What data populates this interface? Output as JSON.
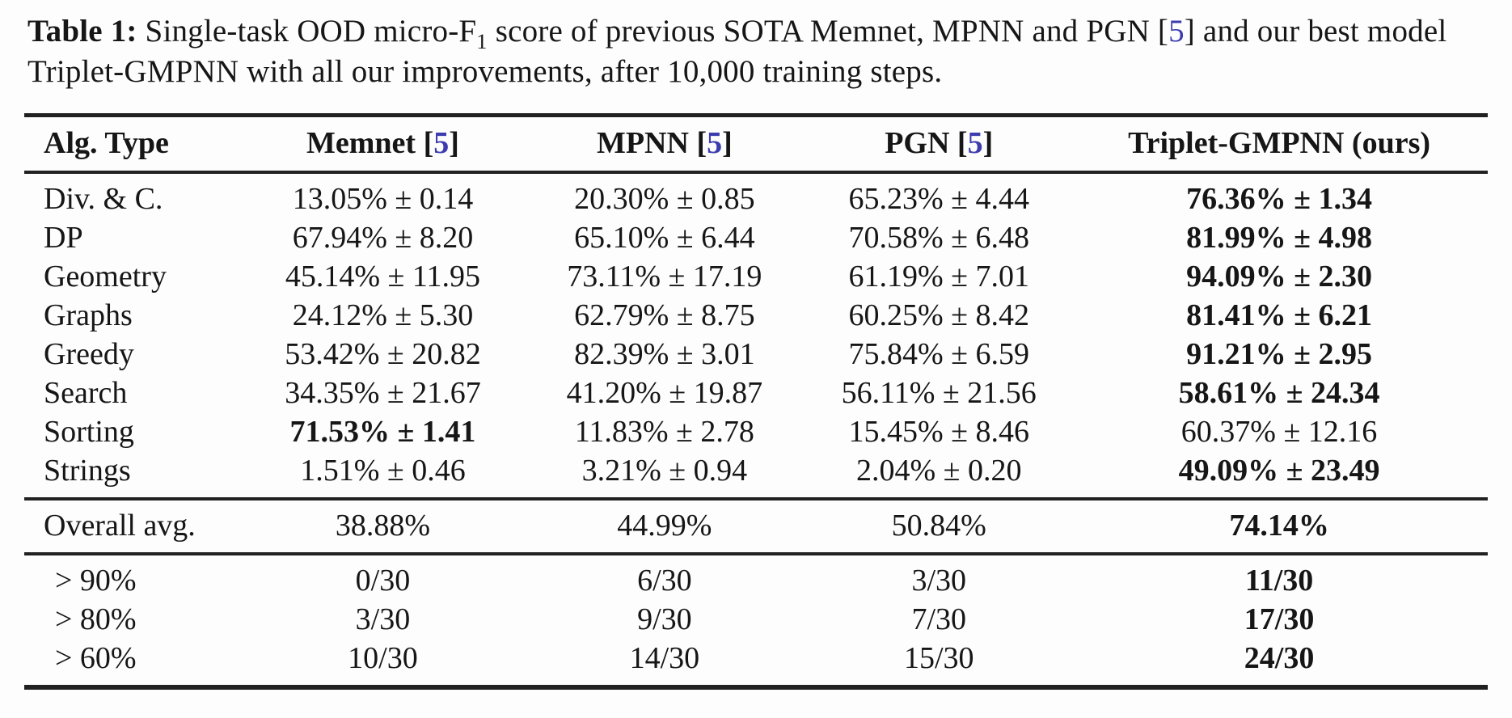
{
  "page": {
    "background": "#fdfdfd",
    "text_color": "#161616",
    "rule_color": "#212121",
    "citation_color": "#3c3cae"
  },
  "punct": {
    "bracket_open": "[",
    "bracket_close": "]"
  },
  "caption": {
    "label": "Table 1:",
    "part1": " Single-task OOD micro-F",
    "f_subscript": "1",
    "part2": " score of previous SOTA Memnet, MPNN and PGN ",
    "cite": "5",
    "part3": " and our best model Triplet-GMPNN with all our improvements, after 10,000 training steps."
  },
  "table": {
    "headers": [
      {
        "label": "Alg. Type"
      },
      {
        "label": "Memnet",
        "cite": "5"
      },
      {
        "label": "MPNN",
        "cite": "5"
      },
      {
        "label": "PGN",
        "cite": "5"
      },
      {
        "label": "Triplet-GMPNN (ours)"
      }
    ],
    "sections": [
      {
        "name": "per-algorithm-scores",
        "indent": false,
        "rows": [
          {
            "label": "Div. & C.",
            "cells": [
              {
                "text": "13.05% ± 0.14"
              },
              {
                "text": "20.30% ± 0.85"
              },
              {
                "text": "65.23% ± 4.44"
              },
              {
                "text": "76.36% ± 1.34",
                "bold": true
              }
            ]
          },
          {
            "label": "DP",
            "cells": [
              {
                "text": "67.94% ± 8.20"
              },
              {
                "text": "65.10% ± 6.44"
              },
              {
                "text": "70.58% ± 6.48"
              },
              {
                "text": "81.99% ± 4.98",
                "bold": true
              }
            ]
          },
          {
            "label": "Geometry",
            "cells": [
              {
                "text": "45.14% ± 11.95"
              },
              {
                "text": "73.11% ± 17.19"
              },
              {
                "text": "61.19% ± 7.01"
              },
              {
                "text": "94.09% ± 2.30",
                "bold": true
              }
            ]
          },
          {
            "label": "Graphs",
            "cells": [
              {
                "text": "24.12% ± 5.30"
              },
              {
                "text": "62.79% ± 8.75"
              },
              {
                "text": "60.25% ± 8.42"
              },
              {
                "text": "81.41% ± 6.21",
                "bold": true
              }
            ]
          },
          {
            "label": "Greedy",
            "cells": [
              {
                "text": "53.42% ± 20.82"
              },
              {
                "text": "82.39% ± 3.01"
              },
              {
                "text": "75.84% ± 6.59"
              },
              {
                "text": "91.21% ± 2.95",
                "bold": true
              }
            ]
          },
          {
            "label": "Search",
            "cells": [
              {
                "text": "34.35% ± 21.67"
              },
              {
                "text": "41.20% ± 19.87"
              },
              {
                "text": "56.11% ± 21.56"
              },
              {
                "text": "58.61% ± 24.34",
                "bold": true
              }
            ]
          },
          {
            "label": "Sorting",
            "cells": [
              {
                "text": "71.53% ± 1.41",
                "bold": true
              },
              {
                "text": "11.83% ± 2.78"
              },
              {
                "text": "15.45% ± 8.46"
              },
              {
                "text": "60.37% ± 12.16"
              }
            ]
          },
          {
            "label": "Strings",
            "cells": [
              {
                "text": "1.51% ± 0.46"
              },
              {
                "text": "3.21% ± 0.94"
              },
              {
                "text": "2.04% ± 0.20"
              },
              {
                "text": "49.09% ± 23.49",
                "bold": true
              }
            ]
          }
        ]
      },
      {
        "name": "overall-average",
        "indent": false,
        "rows": [
          {
            "label": "Overall avg.",
            "cells": [
              {
                "text": "38.88%"
              },
              {
                "text": "44.99%"
              },
              {
                "text": "50.84%"
              },
              {
                "text": "74.14%",
                "bold": true
              }
            ]
          }
        ]
      },
      {
        "name": "score-thresholds",
        "indent": true,
        "rows": [
          {
            "label": "> 90%",
            "cells": [
              {
                "text": "0/30"
              },
              {
                "text": "6/30"
              },
              {
                "text": "3/30"
              },
              {
                "text": "11/30",
                "bold": true
              }
            ]
          },
          {
            "label": "> 80%",
            "cells": [
              {
                "text": "3/30"
              },
              {
                "text": "9/30"
              },
              {
                "text": "7/30"
              },
              {
                "text": "17/30",
                "bold": true
              }
            ]
          },
          {
            "label": "> 60%",
            "cells": [
              {
                "text": "10/30"
              },
              {
                "text": "14/30"
              },
              {
                "text": "15/30"
              },
              {
                "text": "24/30",
                "bold": true
              }
            ]
          }
        ]
      }
    ]
  }
}
